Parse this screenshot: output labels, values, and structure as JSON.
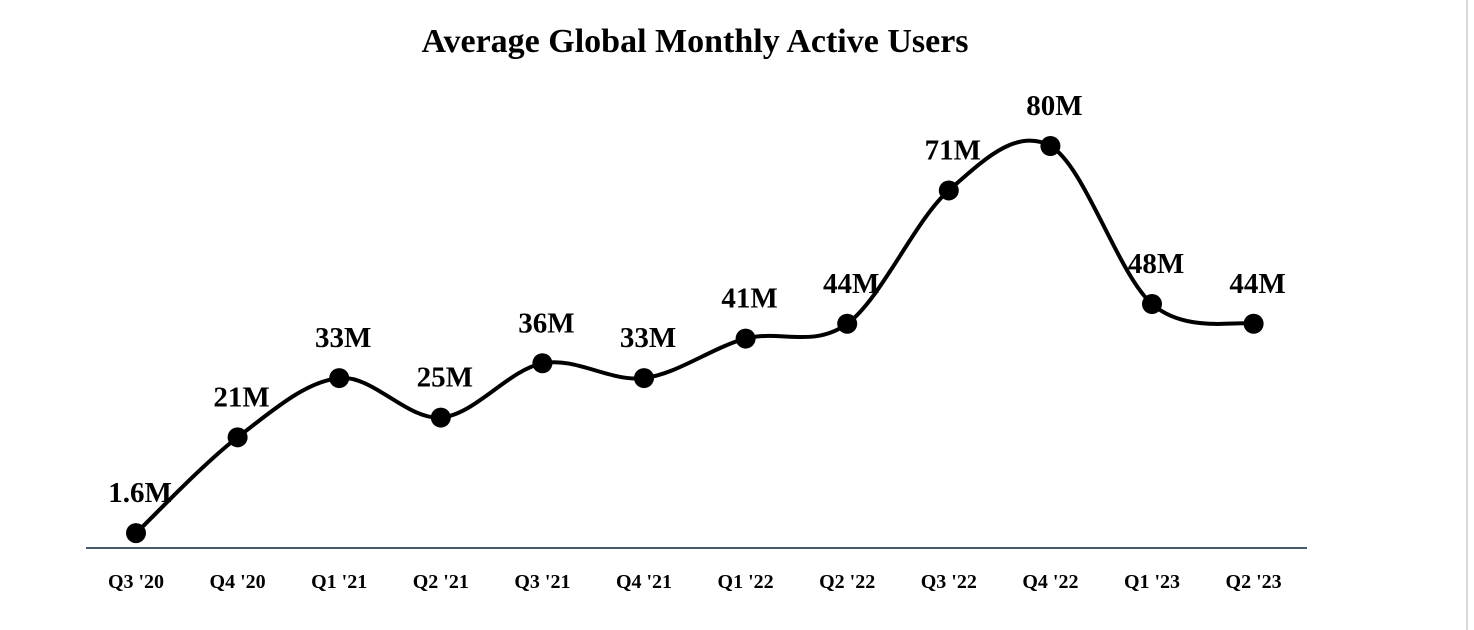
{
  "chart_data": {
    "type": "line",
    "title": "Average Global Monthly Active Users",
    "xlabel": "",
    "ylabel": "",
    "categories": [
      "Q3 '20",
      "Q4 '20",
      "Q1 '21",
      "Q2 '21",
      "Q3 '21",
      "Q4 '21",
      "Q1 '22",
      "Q2 '22",
      "Q3 '22",
      "Q4 '22",
      "Q1 '23",
      "Q2 '23"
    ],
    "series": [
      {
        "values": [
          1.6,
          21,
          33,
          25,
          36,
          33,
          41,
          44,
          71,
          80,
          48,
          44
        ],
        "data_labels": [
          "1.6M",
          "21M",
          "33M",
          "25M",
          "36M",
          "33M",
          "41M",
          "44M",
          "71M",
          "80M",
          "48M",
          "44M"
        ]
      }
    ],
    "ylim": [
      0,
      85
    ],
    "grid": false,
    "legend": "none",
    "smooth": true,
    "colors": {
      "line": "#000000",
      "markers": "#000000",
      "axis": "#4a5a6a",
      "text": "#000000"
    }
  }
}
